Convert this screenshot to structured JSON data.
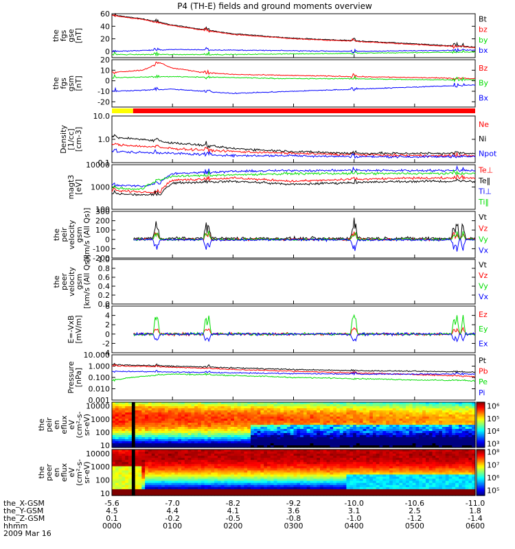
{
  "title": "P4 (TH-E) fields and ground moments overview",
  "colors": {
    "black": "#000000",
    "red": "#ff0000",
    "green": "#00dd00",
    "blue": "#0000ff",
    "bar_yellow": "#ffff00",
    "bar_red": "#ff0000"
  },
  "panels": [
    {
      "id": "p1",
      "ylabel": [
        "the",
        "fgs",
        "gse",
        "[nT]"
      ],
      "scale": "linear",
      "ylim": [
        -10,
        60
      ],
      "yticks": [
        {
          "v": 60,
          "t": "60"
        },
        {
          "v": 40,
          "t": "40"
        },
        {
          "v": 20,
          "t": "20"
        },
        {
          "v": 0,
          "t": "0"
        }
      ],
      "series": [
        {
          "name": "Bt",
          "color": "#000000"
        },
        {
          "name": "bz",
          "color": "#ff0000"
        },
        {
          "name": "by",
          "color": "#00dd00"
        },
        {
          "name": "bx",
          "color": "#0000ff"
        }
      ]
    },
    {
      "id": "p2",
      "ylabel": [
        "the",
        "fgs",
        "gsm",
        "[nT]"
      ],
      "scale": "linear",
      "ylim": [
        -25,
        20
      ],
      "yticks": [
        {
          "v": 20,
          "t": "20"
        },
        {
          "v": 10,
          "t": "10"
        },
        {
          "v": 0,
          "t": "0"
        },
        {
          "v": -10,
          "t": "-10"
        },
        {
          "v": -20,
          "t": "-20"
        }
      ],
      "series": [
        {
          "name": "Bz",
          "color": "#ff0000"
        },
        {
          "name": "By",
          "color": "#00dd00"
        },
        {
          "name": "Bx",
          "color": "#0000ff"
        }
      ]
    },
    {
      "id": "p3",
      "ylabel": [
        "Density",
        "[1/cc]",
        "[cm-3]"
      ],
      "scale": "log",
      "ylim": [
        0.1,
        10
      ],
      "yticks": [
        {
          "v": 10,
          "t": "10.0"
        },
        {
          "v": 1,
          "t": "1.0"
        },
        {
          "v": 0.1,
          "t": "0.1"
        }
      ],
      "series": [
        {
          "name": "Ne",
          "color": "#ff0000"
        },
        {
          "name": "Ni",
          "color": "#000000"
        },
        {
          "name": "Npot",
          "color": "#0000ff"
        }
      ]
    },
    {
      "id": "p4",
      "ylabel": [
        "magt3",
        "[eV]"
      ],
      "scale": "log",
      "ylim": [
        100,
        10000
      ],
      "yticks": [
        {
          "v": 10000,
          "t": "10000"
        },
        {
          "v": 1000,
          "t": "1000"
        },
        {
          "v": 100,
          "t": "100"
        }
      ],
      "series": [
        {
          "name": "Te⊥",
          "color": "#ff0000"
        },
        {
          "name": "Te‖",
          "color": "#000000"
        },
        {
          "name": "Ti⊥",
          "color": "#0000ff"
        },
        {
          "name": "Ti‖",
          "color": "#00dd00"
        }
      ]
    },
    {
      "id": "p5",
      "ylabel": [
        "the",
        "peir",
        "velocity",
        "gsm",
        "[km/s (All Qs)]"
      ],
      "scale": "linear",
      "ylim": [
        -200,
        300
      ],
      "yticks": [
        {
          "v": 300,
          "t": "300"
        },
        {
          "v": 200,
          "t": "200"
        },
        {
          "v": 100,
          "t": "100"
        },
        {
          "v": 0,
          "t": "0"
        },
        {
          "v": -100,
          "t": "-100"
        },
        {
          "v": -200,
          "t": "-200"
        }
      ],
      "series": [
        {
          "name": "Vt",
          "color": "#000000"
        },
        {
          "name": "Vz",
          "color": "#ff0000"
        },
        {
          "name": "Vy",
          "color": "#00dd00"
        },
        {
          "name": "Vx",
          "color": "#0000ff"
        }
      ]
    },
    {
      "id": "p6",
      "ylabel": [
        "the",
        "peer",
        "velocity",
        "gsm",
        "[km/s (All Qs)]"
      ],
      "scale": "linear",
      "ylim": [
        0,
        1.0
      ],
      "yticks": [
        {
          "v": 1.0,
          "t": "1.0"
        },
        {
          "v": 0.8,
          "t": "0.8"
        },
        {
          "v": 0.6,
          "t": "0.6"
        },
        {
          "v": 0.4,
          "t": "0.4"
        },
        {
          "v": 0.2,
          "t": "0.2"
        },
        {
          "v": 0,
          "t": "0.0"
        }
      ],
      "series": [
        {
          "name": "Vt",
          "color": "#000000"
        },
        {
          "name": "Vz",
          "color": "#ff0000"
        },
        {
          "name": "Vy",
          "color": "#00dd00"
        },
        {
          "name": "Vx",
          "color": "#0000ff"
        }
      ]
    },
    {
      "id": "p7",
      "ylabel": [
        "E=-VxB",
        "[mV/m]"
      ],
      "scale": "linear",
      "ylim": [
        -4,
        6
      ],
      "yticks": [
        {
          "v": 6,
          "t": "6"
        },
        {
          "v": 4,
          "t": "4"
        },
        {
          "v": 2,
          "t": "2"
        },
        {
          "v": 0,
          "t": "0"
        },
        {
          "v": -2,
          "t": "-2"
        },
        {
          "v": -4,
          "t": "-4"
        }
      ],
      "series": [
        {
          "name": "Ez",
          "color": "#ff0000"
        },
        {
          "name": "Ey",
          "color": "#00dd00"
        },
        {
          "name": "Ex",
          "color": "#0000ff"
        }
      ]
    },
    {
      "id": "p8",
      "ylabel": [
        "Pressure",
        "[nPa]"
      ],
      "scale": "log",
      "ylim": [
        0.001,
        10
      ],
      "yticks": [
        {
          "v": 10,
          "t": "10.000"
        },
        {
          "v": 1,
          "t": "1.000"
        },
        {
          "v": 0.1,
          "t": "0.100"
        },
        {
          "v": 0.01,
          "t": "0.010"
        },
        {
          "v": 0.001,
          "t": "0.001"
        }
      ],
      "series": [
        {
          "name": "Pt",
          "color": "#000000"
        },
        {
          "name": "Pb",
          "color": "#ff0000"
        },
        {
          "name": "Pe",
          "color": "#00dd00"
        },
        {
          "name": "Pi",
          "color": "#0000ff"
        }
      ]
    },
    {
      "id": "p9",
      "ylabel": [
        "the",
        "peir",
        "en",
        "eflux",
        "eV",
        "(cm²-s-",
        "sr-eV)"
      ],
      "scale": "log",
      "ylim": [
        7,
        20000
      ],
      "yticks": [
        {
          "v": 10000,
          "t": "10000"
        },
        {
          "v": 1000,
          "t": "1000"
        },
        {
          "v": 100,
          "t": "100"
        },
        {
          "v": 10,
          "t": "10"
        }
      ],
      "colorbar": [
        {
          "v": 6,
          "t": "10⁶"
        },
        {
          "v": 5,
          "t": "10⁵"
        },
        {
          "v": 4,
          "t": "10⁴"
        },
        {
          "v": 3,
          "t": "10³"
        }
      ],
      "cmin": 2.7,
      "cmax": 6.3
    },
    {
      "id": "p10",
      "ylabel": [
        "the",
        "peer",
        "en",
        "eflux",
        "eV",
        "(cm²-s-",
        "sr-eV)"
      ],
      "scale": "log",
      "ylim": [
        7,
        20000
      ],
      "yticks": [
        {
          "v": 10000,
          "t": "10000"
        },
        {
          "v": 1000,
          "t": "1000"
        },
        {
          "v": 100,
          "t": "100"
        },
        {
          "v": 10,
          "t": "10"
        }
      ],
      "colorbar": [
        {
          "v": 8,
          "t": "10⁸"
        },
        {
          "v": 7,
          "t": "10⁷"
        },
        {
          "v": 6,
          "t": "10⁶"
        },
        {
          "v": 5,
          "t": "10⁵"
        }
      ],
      "cmin": 4.6,
      "cmax": 8.2
    }
  ],
  "footer": {
    "rows": [
      {
        "label": "the_X-GSM",
        "values": [
          "-5.6",
          "-7.0",
          "-8.2",
          "-9.2",
          "-10.0",
          "-10.6",
          "-11.0"
        ]
      },
      {
        "label": "the_Y-GSM",
        "values": [
          "4.5",
          "4.4",
          "4.1",
          "3.6",
          "3.1",
          "2.5",
          "1.8"
        ]
      },
      {
        "label": "the_Z-GSM",
        "values": [
          "0.1",
          "-0.2",
          "-0.5",
          "-0.8",
          "-1.0",
          "-1.2",
          "-1.4"
        ]
      },
      {
        "label": "hhmm",
        "values": [
          "0000",
          "0100",
          "0200",
          "0300",
          "0400",
          "0500",
          "0600"
        ]
      }
    ],
    "date": "2009 Mar 16"
  },
  "chart_data": {
    "type": "line",
    "title": "P4 (TH-E) fields and ground moments overview",
    "x_unit": "hhmm",
    "x_range": [
      "0000",
      "0600"
    ],
    "xticks": [
      "0000",
      "0100",
      "0200",
      "0300",
      "0400",
      "0500",
      "0600"
    ],
    "series_approx": [
      {
        "panel": "p1",
        "name": "Bt",
        "x_hours": [
          0,
          0.5,
          1,
          2,
          3,
          4,
          5,
          6
        ],
        "values": [
          58,
          52,
          42,
          28,
          21,
          17,
          12,
          7
        ]
      },
      {
        "panel": "p1",
        "name": "bz",
        "x_hours": [
          0,
          0.5,
          1,
          2,
          3,
          4,
          5,
          6
        ],
        "values": [
          57,
          51,
          41,
          27,
          20,
          16,
          11,
          6
        ]
      },
      {
        "panel": "p1",
        "name": "by",
        "x_hours": [
          0,
          1,
          2,
          3,
          4,
          5,
          6
        ],
        "values": [
          -5,
          -5,
          -5,
          -4,
          -3,
          -2,
          -1
        ]
      },
      {
        "panel": "p1",
        "name": "bx",
        "x_hours": [
          0,
          1,
          2,
          3,
          4,
          5,
          6
        ],
        "values": [
          0,
          3,
          2,
          1,
          0,
          1,
          2
        ]
      },
      {
        "panel": "p2",
        "name": "Bz",
        "x_hours": [
          0,
          0.5,
          0.8,
          1,
          1.5,
          2,
          3,
          4,
          5,
          6
        ],
        "values": [
          8,
          10,
          17,
          12,
          8,
          6,
          5,
          4,
          3,
          2
        ]
      },
      {
        "panel": "p2",
        "name": "By",
        "x_hours": [
          0,
          1,
          2,
          3,
          4,
          5,
          6
        ],
        "values": [
          3,
          4,
          3,
          2,
          2,
          1,
          1
        ]
      },
      {
        "panel": "p2",
        "name": "Bx",
        "x_hours": [
          0,
          1,
          2,
          3,
          4,
          5,
          6
        ],
        "values": [
          -10,
          -8,
          -12,
          -10,
          -8,
          -6,
          -4
        ]
      },
      {
        "panel": "p3",
        "name": "Ni",
        "x_hours": [
          0,
          0.5,
          1,
          2,
          3,
          4,
          5,
          6
        ],
        "values": [
          1.2,
          1.0,
          0.7,
          0.4,
          0.3,
          0.25,
          0.25,
          0.25
        ]
      },
      {
        "panel": "p3",
        "name": "Ne",
        "x_hours": [
          0,
          0.5,
          1,
          2,
          3,
          4,
          5,
          6
        ],
        "values": [
          0.6,
          0.5,
          0.4,
          0.3,
          0.25,
          0.22,
          0.2,
          0.2
        ]
      },
      {
        "panel": "p3",
        "name": "Npot",
        "x_hours": [
          0,
          1,
          2,
          3,
          4,
          5,
          6
        ],
        "values": [
          0.3,
          0.25,
          0.2,
          0.2,
          0.18,
          0.18,
          0.18
        ]
      },
      {
        "panel": "p4",
        "name": "Ti⊥",
        "x_hours": [
          0,
          0.5,
          0.8,
          1,
          2,
          3,
          4,
          5,
          6
        ],
        "values": [
          1200,
          1100,
          1500,
          4000,
          5000,
          5500,
          5500,
          5500,
          5500
        ]
      },
      {
        "panel": "p4",
        "name": "Ti‖",
        "x_hours": [
          0,
          0.5,
          1,
          2,
          3,
          4,
          5,
          6
        ],
        "values": [
          900,
          800,
          3000,
          3500,
          4000,
          4000,
          4000,
          4000
        ]
      },
      {
        "panel": "p4",
        "name": "Te⊥",
        "x_hours": [
          0,
          0.5,
          0.8,
          1,
          2,
          3,
          4,
          5,
          6
        ],
        "values": [
          700,
          600,
          600,
          2000,
          2500,
          1800,
          2200,
          2500,
          2500
        ]
      },
      {
        "panel": "p4",
        "name": "Te‖",
        "x_hours": [
          0,
          0.5,
          0.8,
          1,
          2,
          3,
          4,
          5,
          6
        ],
        "values": [
          500,
          450,
          450,
          1500,
          1800,
          1300,
          1600,
          1800,
          1800
        ]
      },
      {
        "panel": "p8",
        "name": "Pt",
        "x_hours": [
          0,
          1,
          2,
          3,
          4,
          5,
          6
        ],
        "values": [
          1.3,
          1.0,
          0.7,
          0.5,
          0.4,
          0.35,
          0.3
        ]
      },
      {
        "panel": "p8",
        "name": "Pb",
        "x_hours": [
          0,
          1,
          2,
          3,
          4,
          5,
          6
        ],
        "values": [
          1.1,
          0.8,
          0.5,
          0.35,
          0.25,
          0.18,
          0.12
        ]
      },
      {
        "panel": "p8",
        "name": "Pi",
        "x_hours": [
          0,
          1,
          2,
          3,
          4,
          5,
          6
        ],
        "values": [
          0.35,
          0.3,
          0.25,
          0.22,
          0.2,
          0.2,
          0.2
        ]
      },
      {
        "panel": "p8",
        "name": "Pe",
        "x_hours": [
          0,
          1,
          2,
          3,
          4,
          5,
          6
        ],
        "values": [
          0.05,
          0.2,
          0.15,
          0.1,
          0.08,
          0.06,
          0.05
        ]
      }
    ]
  }
}
